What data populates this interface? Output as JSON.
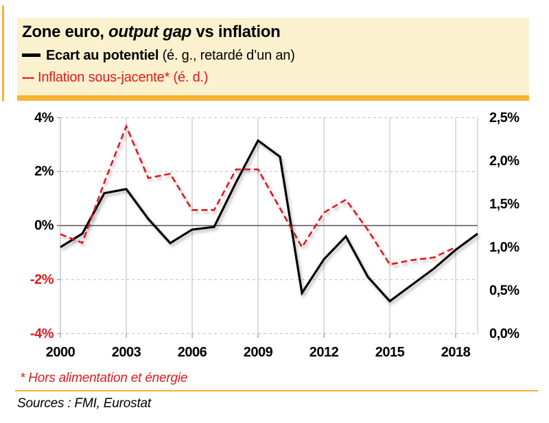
{
  "header": {
    "title_prefix": "Zone euro, ",
    "title_italic": "output gap",
    "title_suffix": " vs inflation",
    "legend": [
      {
        "marker": "solid-line",
        "label_bold": "Ecart au potentiel",
        "label_rest": " (é. g., retardé d’un an)",
        "color": "#000000"
      },
      {
        "marker": "---",
        "label": "Inflation sous-jacente* (é. d.)",
        "color": "#E2191C"
      }
    ],
    "background_color": "#FCF1CF",
    "accent_color": "#F9B233"
  },
  "chart_data": {
    "type": "line",
    "title": "Zone euro, output gap vs inflation",
    "grid": "on",
    "x_axis": {
      "range": [
        2000,
        2019
      ],
      "tick_values": [
        2000,
        2003,
        2006,
        2009,
        2012,
        2015,
        2018
      ],
      "tick_labels": [
        "2000",
        "2003",
        "2006",
        "2009",
        "2012",
        "2015",
        "2018"
      ]
    },
    "left_axis": {
      "range": [
        -4,
        4
      ],
      "tick_values": [
        4,
        2,
        0,
        -2,
        -4
      ],
      "tick_labels": [
        "4%",
        "2%",
        "0%",
        "-2%",
        "-4%"
      ],
      "negative_color": "#E2191C"
    },
    "right_axis": {
      "range": [
        0,
        2.5
      ],
      "tick_values": [
        2.5,
        2.0,
        1.5,
        1.0,
        0.5,
        0.0
      ],
      "tick_labels": [
        "2,5%",
        "2,0%",
        "1,5%",
        "1,0%",
        "0,5%",
        "0,0%"
      ]
    },
    "series": [
      {
        "name": "Ecart au potentiel (é. g., retardé d’un an)",
        "axis": "left",
        "style": "solid",
        "color": "#000000",
        "x": [
          2000,
          2001,
          2002,
          2003,
          2004,
          2005,
          2006,
          2007,
          2008,
          2009,
          2010,
          2011,
          2012,
          2013,
          2014,
          2015,
          2016,
          2017,
          2018,
          2019
        ],
        "values": [
          -0.8,
          -0.3,
          1.2,
          1.35,
          0.25,
          -0.65,
          -0.15,
          -0.05,
          1.6,
          3.15,
          2.55,
          -2.5,
          -1.25,
          -0.4,
          -1.9,
          -2.8,
          -2.2,
          -1.6,
          -0.9,
          -0.3
        ]
      },
      {
        "name": "Inflation sous-jacente* (é. d.)",
        "axis": "right",
        "style": "dashed",
        "color": "#E2191C",
        "x": [
          2000,
          2001,
          2002,
          2003,
          2004,
          2005,
          2006,
          2007,
          2008,
          2009,
          2010,
          2011,
          2012,
          2013,
          2014,
          2015,
          2016,
          2017,
          2018
        ],
        "values": [
          1.15,
          1.05,
          1.75,
          2.4,
          1.8,
          1.85,
          1.43,
          1.43,
          1.9,
          1.9,
          1.45,
          1.0,
          1.4,
          1.55,
          1.2,
          0.8,
          0.85,
          0.88,
          1.0
        ]
      }
    ]
  },
  "footer": {
    "footnote": "* Hors alimentation et énergie",
    "sources": "Sources : FMI, Eurostat"
  }
}
